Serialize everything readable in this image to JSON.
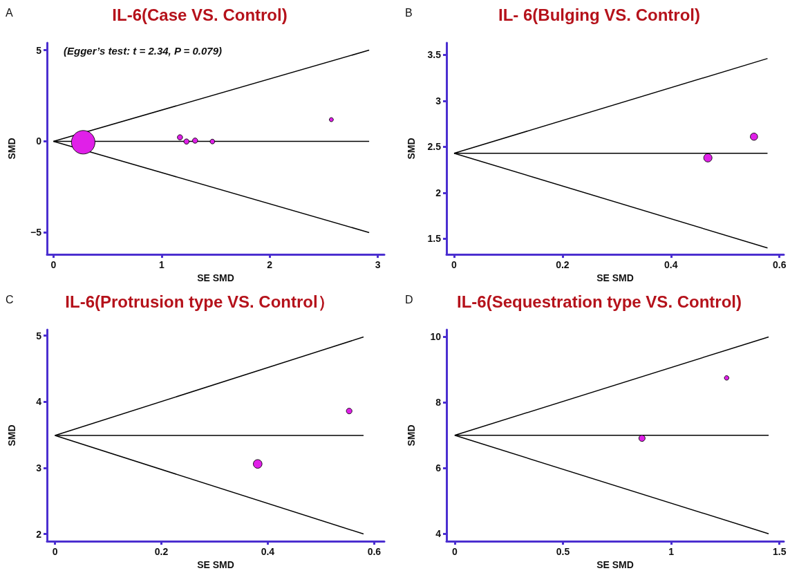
{
  "chart_data": [
    {
      "type": "bubble",
      "title": "IL-6(Case VS. Control)",
      "xlabel": "SE SMD",
      "ylabel": "SMD",
      "annotations": [
        "A",
        "(Egger’s test: t = 2.34, P = 0.079)"
      ],
      "xlim": [
        -0.06,
        3.06
      ],
      "xticks": [
        0,
        1,
        2,
        3
      ],
      "ylim": [
        -6.2,
        5.4
      ],
      "yticks": [
        {
          "value": -5,
          "label": "−5"
        },
        0,
        5
      ],
      "grid": false,
      "series": [
        {
          "type": "line",
          "color": "#000000",
          "marker": "none",
          "x": [
            0,
            2.92
          ],
          "values": [
            0,
            5
          ]
        },
        {
          "type": "line",
          "color": "#000000",
          "marker": "none",
          "x": [
            0,
            2.92
          ],
          "values": [
            0,
            0
          ]
        },
        {
          "type": "line",
          "color": "#000000",
          "marker": "none",
          "x": [
            0,
            2.92
          ],
          "values": [
            0,
            -5
          ]
        },
        {
          "color": "#e020e8",
          "marker": "circle",
          "x": [
            0.275,
            1.17,
            1.23,
            1.31,
            1.47,
            2.57
          ],
          "values": [
            -0.05,
            0.22,
            -0.01,
            0.04,
            -0.01,
            1.19
          ],
          "sizes": [
            1,
            0.05,
            0.05,
            0.05,
            0.04,
            0.03
          ]
        }
      ]
    },
    {
      "type": "bubble",
      "title": "IL- 6(Bulging VS. Control)",
      "xlabel": "SE SMD",
      "ylabel": "SMD",
      "annotations": [
        "B"
      ],
      "xlim": [
        -0.014,
        0.608
      ],
      "xticks": [
        0,
        0.2,
        0.4,
        0.6
      ],
      "ylim": [
        1.33,
        3.63
      ],
      "yticks": [
        1.5,
        2,
        2.5,
        3,
        3.5
      ],
      "grid": false,
      "series": [
        {
          "type": "line",
          "color": "#000000",
          "marker": "none",
          "x": [
            0,
            0.578
          ],
          "values": [
            2.43,
            3.46
          ]
        },
        {
          "type": "line",
          "color": "#000000",
          "marker": "none",
          "x": [
            0,
            0.578
          ],
          "values": [
            2.43,
            2.43
          ]
        },
        {
          "type": "line",
          "color": "#000000",
          "marker": "none",
          "x": [
            0,
            0.578
          ],
          "values": [
            2.43,
            1.4
          ]
        },
        {
          "color": "#e020e8",
          "marker": "circle",
          "x": [
            0.468,
            0.553
          ],
          "values": [
            2.38,
            2.61
          ],
          "sizes": [
            1,
            0.77
          ]
        }
      ]
    },
    {
      "type": "bubble",
      "title": "IL-6(Protrusion type VS. Control）",
      "xlabel": "SE SMD",
      "ylabel": "SMD",
      "annotations": [
        "C"
      ],
      "xlim": [
        -0.015,
        0.619
      ],
      "xticks": [
        0,
        0.2,
        0.4,
        0.6
      ],
      "ylim": [
        1.89,
        5.09
      ],
      "yticks": [
        2,
        3,
        4,
        5
      ],
      "grid": false,
      "series": [
        {
          "type": "line",
          "color": "#000000",
          "marker": "none",
          "x": [
            0,
            0.58
          ],
          "values": [
            3.49,
            4.98
          ]
        },
        {
          "type": "line",
          "color": "#000000",
          "marker": "none",
          "x": [
            0,
            0.58
          ],
          "values": [
            3.49,
            3.49
          ]
        },
        {
          "type": "line",
          "color": "#000000",
          "marker": "none",
          "x": [
            0,
            0.58
          ],
          "values": [
            3.49,
            2
          ]
        },
        {
          "color": "#e020e8",
          "marker": "circle",
          "x": [
            0.381,
            0.553
          ],
          "values": [
            3.06,
            3.86
          ],
          "sizes": [
            1,
            0.42
          ]
        }
      ]
    },
    {
      "type": "bubble",
      "title": "IL-6(Sequestration type VS. Control)",
      "xlabel": "SE SMD",
      "ylabel": "SMD",
      "annotations": [
        "D"
      ],
      "xlim": [
        -0.038,
        1.52
      ],
      "xticks": [
        0,
        0.5,
        1,
        1.5
      ],
      "ylim": [
        3.77,
        10.22
      ],
      "yticks": [
        4,
        6,
        8,
        10
      ],
      "grid": false,
      "series": [
        {
          "type": "line",
          "color": "#000000",
          "marker": "none",
          "x": [
            0,
            1.45
          ],
          "values": [
            7,
            10
          ]
        },
        {
          "type": "line",
          "color": "#000000",
          "marker": "none",
          "x": [
            0,
            1.45
          ],
          "values": [
            7,
            7
          ]
        },
        {
          "type": "line",
          "color": "#000000",
          "marker": "none",
          "x": [
            0,
            1.45
          ],
          "values": [
            7,
            4
          ]
        },
        {
          "color": "#e020e8",
          "marker": "circle",
          "x": [
            0.865,
            1.256
          ],
          "values": [
            6.91,
            8.75
          ],
          "sizes": [
            1,
            0.53
          ]
        }
      ]
    }
  ]
}
